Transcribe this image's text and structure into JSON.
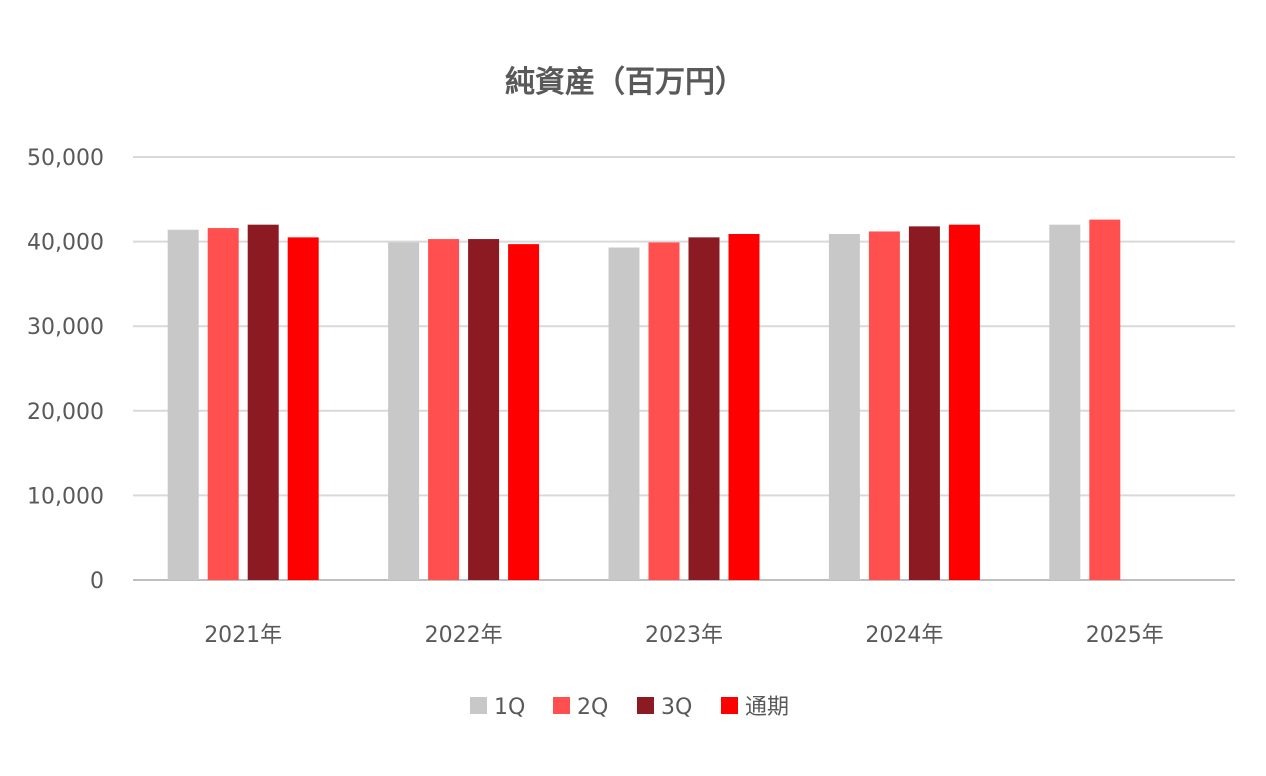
{
  "chart_data": {
    "type": "bar",
    "title": "純資産（百万円）",
    "xlabel": "",
    "ylabel": "",
    "categories": [
      "2021年",
      "2022年",
      "2023年",
      "2024年",
      "2025年"
    ],
    "series": [
      {
        "name": "1Q",
        "color": "#c8c8c8",
        "values": [
          41400,
          39900,
          39300,
          40900,
          42000
        ]
      },
      {
        "name": "2Q",
        "color": "#ff4f4f",
        "values": [
          41600,
          40300,
          39900,
          41200,
          42600
        ]
      },
      {
        "name": "3Q",
        "color": "#8b1a22",
        "values": [
          42000,
          40300,
          40500,
          41800,
          null
        ]
      },
      {
        "name": "通期",
        "color": "#ff0000",
        "values": [
          40500,
          39700,
          40900,
          42000,
          null
        ]
      }
    ],
    "ylim": [
      0,
      50000
    ],
    "yticks": [
      0,
      10000,
      20000,
      30000,
      40000,
      50000
    ],
    "ytick_labels": [
      "0",
      "10,000",
      "20,000",
      "30,000",
      "40,000",
      "50,000"
    ],
    "grid": true,
    "legend_position": "bottom"
  }
}
